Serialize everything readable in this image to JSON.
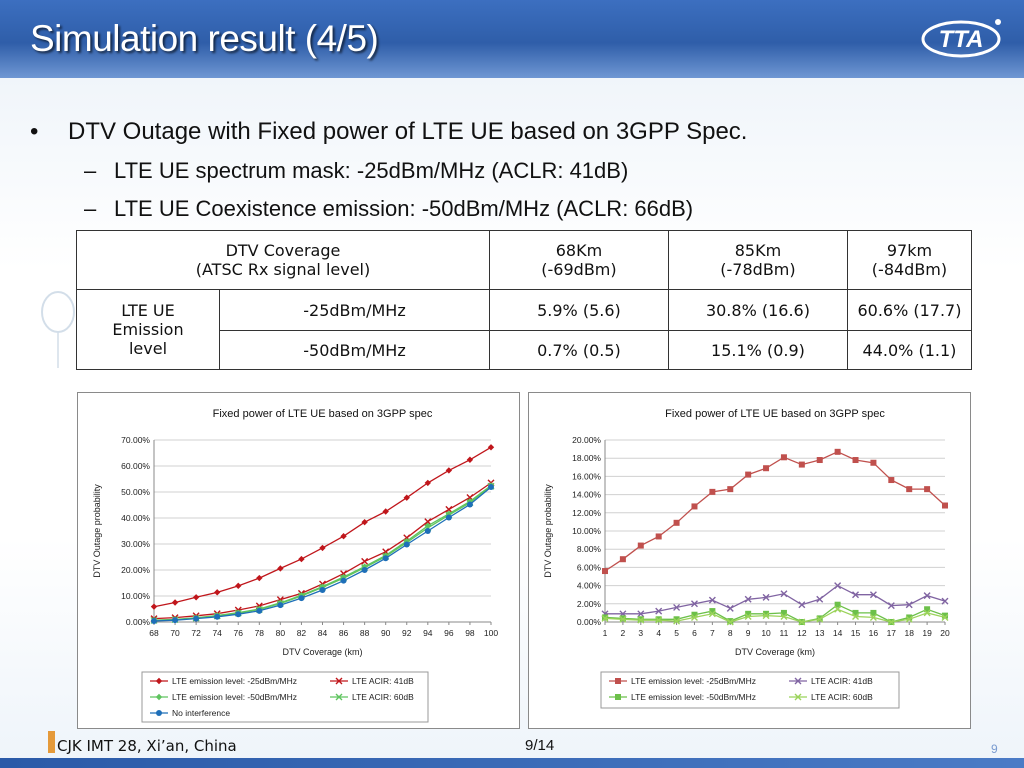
{
  "header": {
    "title": "Simulation result (4/5)",
    "logo_text": "TTA"
  },
  "bullets": {
    "main": "DTV Outage with Fixed power of LTE UE based on 3GPP Spec.",
    "subs": [
      "LTE UE spectrum mask: -25dBm/MHz (ACLR: 41dB)",
      "LTE UE Coexistence emission: -50dBm/MHz (ACLR: 66dB)"
    ],
    "bullet_glyph": "•",
    "dash_glyph": "–"
  },
  "table": {
    "header_label_line1": "DTV Coverage",
    "header_label_line2": "(ATSC Rx signal level)",
    "columns": [
      {
        "line1": "68Km",
        "line2": "(-69dBm)"
      },
      {
        "line1": "85Km",
        "line2": "(-78dBm)"
      },
      {
        "line1": "97km",
        "line2": "(-84dBm)"
      }
    ],
    "row_group_label": [
      "LTE UE",
      "Emission",
      "level"
    ],
    "rows": [
      {
        "label": "-25dBm/MHz",
        "values": [
          "5.9% (5.6)",
          "30.8% (16.6)",
          "60.6% (17.7)"
        ]
      },
      {
        "label": "-50dBm/MHz",
        "values": [
          "0.7% (0.5)",
          "15.1% (0.9)",
          "44.0% (1.1)"
        ]
      }
    ]
  },
  "chart_data": [
    {
      "type": "line",
      "title": "Fixed power of LTE UE based on 3GPP spec",
      "xlabel": "DTV Coverage (km)",
      "ylabel": "DTV  Outage probability",
      "x": [
        68,
        70,
        72,
        74,
        76,
        78,
        80,
        82,
        84,
        86,
        88,
        90,
        92,
        94,
        96,
        98,
        100
      ],
      "ylim": [
        0,
        70
      ],
      "yticks": [
        "0.00%",
        "10.00%",
        "20.00%",
        "30.00%",
        "40.00%",
        "50.00%",
        "60.00%",
        "70.00%"
      ],
      "grid": true,
      "legend": "bottom",
      "series": [
        {
          "name": "LTE emission level: -25dBm/MHz",
          "color": "#c0161b",
          "marker": "diamond",
          "values": [
            5.9,
            7.5,
            9.5,
            11.4,
            13.9,
            16.9,
            20.6,
            24.2,
            28.5,
            33.0,
            38.4,
            42.5,
            47.8,
            53.5,
            58.3,
            62.4,
            67.2
          ]
        },
        {
          "name": "LTE ACIR: 41dB",
          "color": "#c0161b",
          "marker": "x",
          "values": [
            1.3,
            1.7,
            2.4,
            3.2,
            4.6,
            6.2,
            8.6,
            11.0,
            14.6,
            18.6,
            23.3,
            27.0,
            32.4,
            38.6,
            43.3,
            47.9,
            53.5
          ]
        },
        {
          "name": "LTE emission level: -50dBm/MHz",
          "color": "#5fc45f",
          "marker": "diamond",
          "values": [
            0.7,
            1.0,
            1.6,
            2.5,
            3.6,
            5.0,
            7.4,
            10.3,
            13.6,
            17.3,
            21.3,
            25.6,
            31.1,
            37.0,
            41.6,
            46.4,
            52.5
          ]
        },
        {
          "name": "LTE ACIR: 60dB",
          "color": "#5fc45f",
          "marker": "x",
          "values": [
            0.6,
            0.9,
            1.5,
            2.3,
            3.4,
            4.8,
            7.1,
            10.0,
            13.3,
            16.9,
            20.9,
            25.2,
            30.6,
            36.2,
            41.1,
            45.9,
            52.2
          ]
        },
        {
          "name": "No interference",
          "color": "#1e6fb8",
          "marker": "circle",
          "values": [
            0.4,
            0.7,
            1.3,
            2.0,
            3.0,
            4.3,
            6.5,
            9.2,
            12.3,
            15.9,
            20.0,
            24.5,
            29.8,
            35.0,
            40.2,
            45.2,
            51.9
          ]
        }
      ]
    },
    {
      "type": "line",
      "title": "Fixed power of LTE UE based on 3GPP spec",
      "xlabel": "DTV Coverage (km)",
      "ylabel": "DTV  Outage probability",
      "x": [
        1,
        2,
        3,
        4,
        5,
        6,
        7,
        8,
        9,
        10,
        11,
        12,
        13,
        14,
        15,
        16,
        17,
        18,
        19,
        20
      ],
      "ylim": [
        0,
        20
      ],
      "yticks": [
        "0.00%",
        "2.00%",
        "4.00%",
        "6.00%",
        "8.00%",
        "10.00%",
        "12.00%",
        "14.00%",
        "16.00%",
        "18.00%",
        "20.00%"
      ],
      "grid": true,
      "legend": "bottom",
      "series": [
        {
          "name": "LTE emission level: -25dBm/MHz",
          "color": "#c0504d",
          "marker": "square",
          "values": [
            5.6,
            6.9,
            8.4,
            9.4,
            10.9,
            12.7,
            14.3,
            14.6,
            16.2,
            16.9,
            18.1,
            17.3,
            17.8,
            18.7,
            17.8,
            17.5,
            15.6,
            14.6,
            14.6,
            12.8
          ]
        },
        {
          "name": "LTE ACIR: 41dB",
          "color": "#8064a2",
          "marker": "x",
          "values": [
            0.9,
            0.9,
            0.9,
            1.2,
            1.6,
            2.0,
            2.4,
            1.5,
            2.5,
            2.7,
            3.1,
            1.9,
            2.5,
            4.0,
            3.0,
            3.0,
            1.8,
            1.9,
            2.9,
            2.3
          ]
        },
        {
          "name": "LTE emission level: -50dBm/MHz",
          "color": "#6cc04a",
          "marker": "square",
          "values": [
            0.5,
            0.4,
            0.3,
            0.3,
            0.3,
            0.8,
            1.2,
            0.1,
            0.9,
            0.9,
            1.0,
            0.0,
            0.4,
            1.9,
            1.0,
            1.0,
            0.0,
            0.5,
            1.4,
            0.7
          ]
        },
        {
          "name": "LTE ACIR: 60dB",
          "color": "#9bd35a",
          "marker": "x",
          "values": [
            0.4,
            0.3,
            0.2,
            0.2,
            0.1,
            0.5,
            0.9,
            0.0,
            0.6,
            0.7,
            0.6,
            0.0,
            0.3,
            1.4,
            0.6,
            0.5,
            0.0,
            0.3,
            1.0,
            0.5
          ]
        }
      ]
    }
  ],
  "footer": {
    "left": "CJK IMT 28, Xi’an, China",
    "center": "9/14",
    "page_number": "9"
  }
}
